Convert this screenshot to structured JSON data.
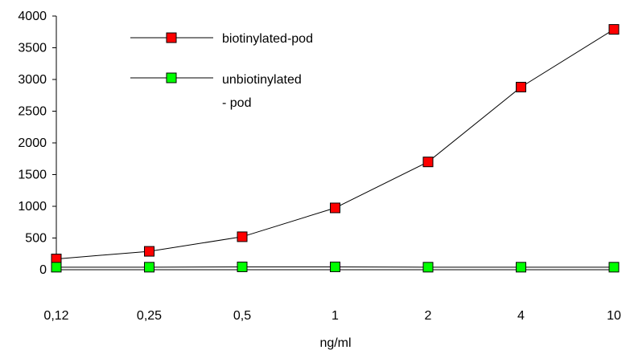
{
  "chart_data": {
    "type": "line",
    "title": "",
    "xlabel": "ng/ml",
    "ylabel": "",
    "categories": [
      "0,12",
      "0,25",
      "0,5",
      "1",
      "2",
      "4",
      "10"
    ],
    "y_ticks": [
      "0",
      "500",
      "1000",
      "1500",
      "2000",
      "2500",
      "3000",
      "3500",
      "4000"
    ],
    "ylim": [
      0,
      4000
    ],
    "grid": false,
    "legend_position": "top-left",
    "series": [
      {
        "name": "biotinylated-pod",
        "legend_lines": [
          "biotinylated-pod"
        ],
        "marker": "square",
        "color": "#ff0000",
        "line_color": "#000000",
        "values": [
          170,
          290,
          520,
          975,
          1700,
          2880,
          3790
        ]
      },
      {
        "name": "unbiotinylated - pod",
        "legend_lines": [
          "unbiotinylated",
          "- pod"
        ],
        "marker": "square",
        "color": "#00ff00",
        "line_color": "#000000",
        "values": [
          40,
          40,
          45,
          45,
          40,
          40,
          40
        ]
      }
    ]
  }
}
